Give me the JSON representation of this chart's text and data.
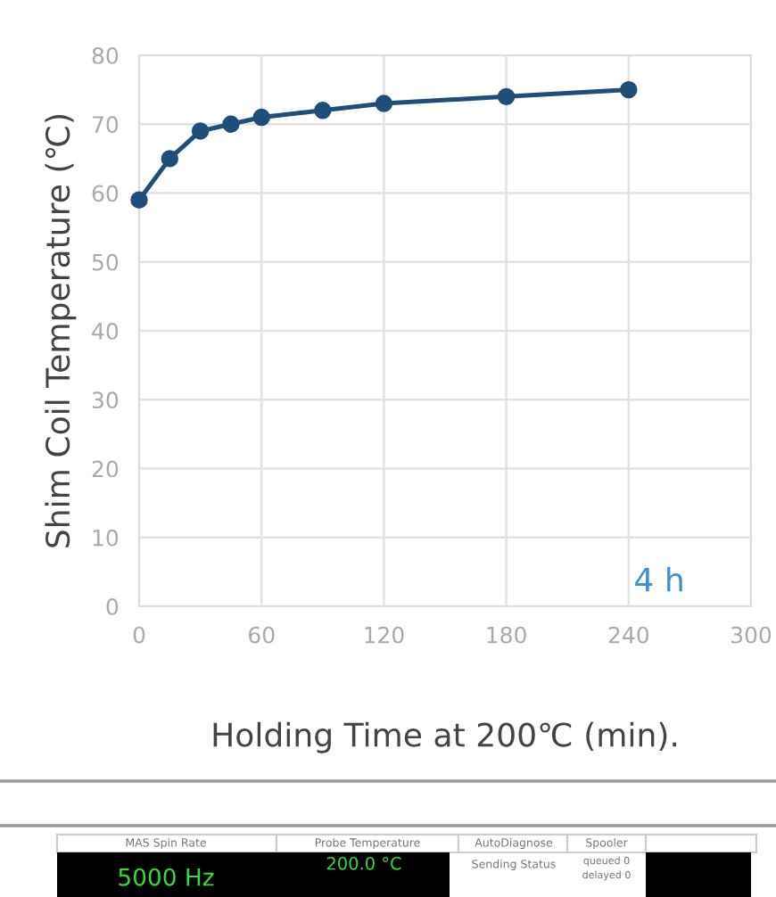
{
  "chart_data": {
    "type": "line",
    "xlabel": "Holding Time at 200℃ (min).",
    "ylabel": "Shim Coil Temperature (℃)",
    "x": [
      0,
      15,
      30,
      45,
      60,
      90,
      120,
      180,
      240
    ],
    "series": [
      {
        "color": "#1f4e79",
        "values": [
          59,
          65,
          69,
          70,
          71,
          72,
          73,
          74,
          75
        ]
      }
    ],
    "xlim": [
      0,
      300
    ],
    "xticks": [
      0,
      60,
      120,
      180,
      240,
      300
    ],
    "ylim": [
      0,
      80
    ],
    "yticks": [
      0,
      10,
      20,
      30,
      40,
      50,
      60,
      70,
      80
    ],
    "grid": true,
    "marker": "circle",
    "line_style": "solid",
    "annotations": [
      "4 h",
      "MAS Spin Rate",
      "Probe Temperature",
      "AutoDiagnose",
      "Spooler",
      "5000 Hz",
      "200.0 °C",
      "Sending Status",
      "queued 0",
      "delayed 0"
    ]
  }
}
